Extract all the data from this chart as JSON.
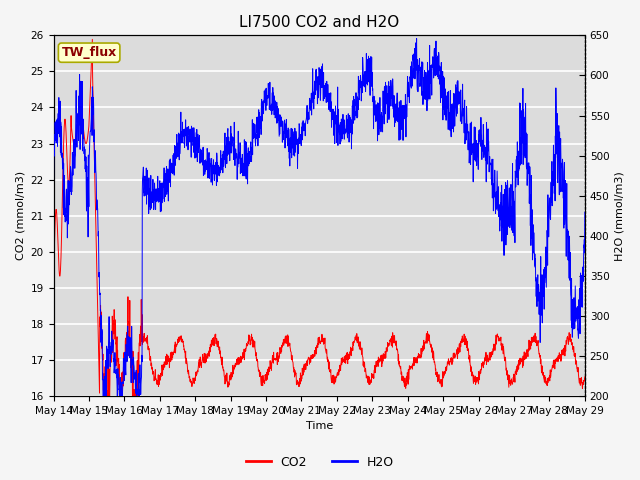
{
  "title": "LI7500 CO2 and H2O",
  "xlabel": "Time",
  "ylabel_left": "CO2 (mmol/m3)",
  "ylabel_right": "H2O (mmol/m3)",
  "co2_ylim": [
    16.0,
    26.0
  ],
  "h2o_ylim": [
    200,
    650
  ],
  "co2_yticks": [
    16.0,
    17.0,
    18.0,
    19.0,
    20.0,
    21.0,
    22.0,
    23.0,
    24.0,
    25.0,
    26.0
  ],
  "h2o_yticks": [
    200,
    250,
    300,
    350,
    400,
    450,
    500,
    550,
    600,
    650
  ],
  "xtick_labels": [
    "May 14",
    "May 15",
    "May 16",
    "May 17",
    "May 18",
    "May 19",
    "May 20",
    "May 21",
    "May 22",
    "May 23",
    "May 24",
    "May 25",
    "May 26",
    "May 27",
    "May 28",
    "May 29"
  ],
  "annotation_text": "TW_flux",
  "annotation_color": "#8B0000",
  "annotation_bg": "#FFFFCC",
  "plot_bg_color": "#DCDCDC",
  "fig_bg_color": "#F5F5F5",
  "co2_color": "#FF0000",
  "h2o_color": "#0000FF",
  "grid_color": "#FFFFFF",
  "title_fontsize": 11,
  "axis_label_fontsize": 8,
  "tick_fontsize": 7.5
}
